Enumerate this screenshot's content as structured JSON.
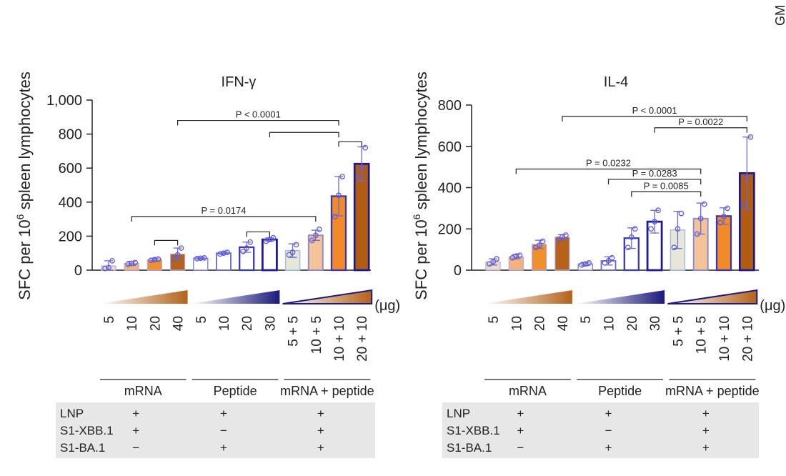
{
  "corner_label": "GM",
  "colors": {
    "mrna": [
      "#ecdcc3",
      "#f2b27c",
      "#f08f2e",
      "#b5621a"
    ],
    "peptide": [
      "#ffffff",
      "#ffffff",
      "#ffffff",
      "#ffffff"
    ],
    "combo": [
      "#e6e7d6",
      "#f4c397",
      "#f28a2a",
      "#b15c12"
    ],
    "peptide_edge": [
      "#7b79d6",
      "#6a66d0",
      "#3d3ab6",
      "#1e1a9a"
    ],
    "combo_edge": [
      "#a6bce9",
      "#8989dc",
      "#3b37b3",
      "#1c198e"
    ],
    "mrna_edge": "#b5a6ea",
    "dot": "#5e5bd8",
    "errorbar": "#6b69d6",
    "table_bg": "#e7e7e7",
    "axis": "#222222"
  },
  "shared": {
    "unit_label": "(μg)",
    "group_labels": [
      "mRNA",
      "Peptide",
      "mRNA + peptide"
    ],
    "table": {
      "rows": [
        {
          "label": "LNP",
          "values": [
            "+",
            "+",
            "+"
          ]
        },
        {
          "label": "S1-XBB.1",
          "values": [
            "+",
            "−",
            "+"
          ]
        },
        {
          "label": "S1-BA.1",
          "values": [
            "−",
            "+",
            "+"
          ]
        }
      ]
    }
  },
  "chart_data": [
    {
      "type": "bar",
      "title": "IFN-γ",
      "ylabel": "SFC per 10^6 spleen lymphocytes",
      "ylabel_parts": [
        "SFC per 10",
        "6",
        " spleen lymphocytes"
      ],
      "ylim": [
        0,
        1000
      ],
      "yticks": [
        0,
        200,
        400,
        600,
        800,
        1000
      ],
      "ytick_labels": [
        "0",
        "200",
        "400",
        "600",
        "800",
        "1,000"
      ],
      "categories": [
        "5",
        "10",
        "20",
        "40",
        "5",
        "10",
        "20",
        "30",
        "5 + 5",
        "10 + 5",
        "10 + 10",
        "20 + 10"
      ],
      "groups": [
        "mRNA",
        "mRNA",
        "mRNA",
        "mRNA",
        "Peptide",
        "Peptide",
        "Peptide",
        "Peptide",
        "mRNA + peptide",
        "mRNA + peptide",
        "mRNA + peptide",
        "mRNA + peptide"
      ],
      "values": [
        25,
        40,
        62,
        95,
        70,
        100,
        135,
        180,
        115,
        205,
        435,
        625
      ],
      "errors": [
        30,
        12,
        8,
        35,
        6,
        8,
        30,
        10,
        40,
        30,
        115,
        100
      ],
      "points": [
        [
          10,
          55,
          15
        ],
        [
          35,
          45,
          40
        ],
        [
          58,
          65,
          62
        ],
        [
          70,
          130,
          90
        ],
        [
          68,
          72,
          70
        ],
        [
          95,
          105,
          100
        ],
        [
          110,
          165,
          130
        ],
        [
          170,
          190,
          180
        ],
        [
          90,
          150,
          105
        ],
        [
          175,
          240,
          205
        ],
        [
          315,
          550,
          440
        ],
        [
          550,
          720,
          600
        ]
      ],
      "annotations": [
        {
          "label": "P < 0.0001",
          "from": 3,
          "to": 10,
          "y": 880
        },
        {
          "label": "",
          "from": 7,
          "to": 10,
          "y": 810
        },
        {
          "label": "",
          "from": 10,
          "to": 11,
          "y": 755
        },
        {
          "label": "P = 0.0174",
          "from": 1,
          "to": 9,
          "y": 315
        },
        {
          "label": "",
          "from": 2,
          "to": 3,
          "y": 175
        },
        {
          "label": "",
          "from": 6,
          "to": 7,
          "y": 225
        }
      ]
    },
    {
      "type": "bar",
      "title": "IL-4",
      "ylabel": "SFC per 10^6 spleen lymphocytes",
      "ylabel_parts": [
        "SFC per 10",
        "6",
        " spleen lymphocytes"
      ],
      "ylim": [
        0,
        800
      ],
      "yticks": [
        0,
        200,
        400,
        600,
        800
      ],
      "ytick_labels": [
        "0",
        "200",
        "400",
        "600",
        "800"
      ],
      "categories": [
        "5",
        "10",
        "20",
        "40",
        "5",
        "10",
        "20",
        "30",
        "5 + 5",
        "10 + 5",
        "10 + 10",
        "20 + 10"
      ],
      "groups": [
        "mRNA",
        "mRNA",
        "mRNA",
        "mRNA",
        "Peptide",
        "Peptide",
        "Peptide",
        "Peptide",
        "mRNA + peptide",
        "mRNA + peptide",
        "mRNA + peptide",
        "mRNA + peptide"
      ],
      "values": [
        40,
        65,
        125,
        160,
        30,
        45,
        155,
        235,
        195,
        250,
        262,
        470
      ],
      "errors": [
        15,
        10,
        20,
        12,
        8,
        20,
        50,
        55,
        90,
        75,
        40,
        175
      ],
      "points": [
        [
          30,
          55,
          40
        ],
        [
          60,
          72,
          68
        ],
        [
          110,
          140,
          120
        ],
        [
          150,
          170,
          162
        ],
        [
          25,
          35,
          30
        ],
        [
          35,
          60,
          45
        ],
        [
          110,
          200,
          160
        ],
        [
          200,
          290,
          235
        ],
        [
          110,
          275,
          200
        ],
        [
          175,
          320,
          250
        ],
        [
          230,
          300,
          260
        ],
        [
          320,
          645,
          450
        ]
      ],
      "annotations": [
        {
          "label": "P < 0.0001",
          "from": 3,
          "to": 11,
          "y": 745
        },
        {
          "label": "P = 0.0022",
          "from": 7,
          "to": 11,
          "y": 690
        },
        {
          "label": "P = 0.0232",
          "from": 1,
          "to": 9,
          "y": 490
        },
        {
          "label": "P = 0.0283",
          "from": 5,
          "to": 9,
          "y": 440
        },
        {
          "label": "P = 0.0085",
          "from": 6,
          "to": 9,
          "y": 380
        }
      ]
    }
  ]
}
